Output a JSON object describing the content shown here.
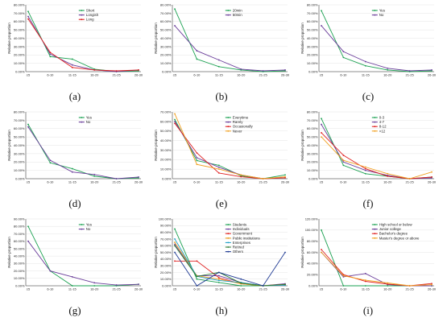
{
  "chart_data": [
    {
      "id": "a",
      "caption": "(a)",
      "type": "line",
      "ylabel": "Relative proportion",
      "xlabel": "",
      "ylim": [
        0,
        80
      ],
      "yticks": [
        0,
        10,
        20,
        30,
        40,
        50,
        60,
        70,
        80
      ],
      "categories": [
        "≤5",
        "6-10",
        "11-15",
        "16-20",
        "21-25",
        "26-30"
      ],
      "legend_position": "top-right",
      "series": [
        {
          "name": "Short",
          "color": "#1aa050",
          "values": [
            72,
            18,
            15,
            3,
            0,
            1
          ]
        },
        {
          "name": "Longish",
          "color": "#6a3d9a",
          "values": [
            66,
            21,
            8,
            2,
            0,
            2
          ]
        },
        {
          "name": "Long",
          "color": "#e02020",
          "values": [
            63,
            23,
            5,
            2,
            1,
            2
          ]
        }
      ]
    },
    {
      "id": "b",
      "caption": "(b)",
      "type": "line",
      "ylabel": "Relative proportion",
      "xlabel": "",
      "ylim": [
        0,
        80
      ],
      "yticks": [
        0,
        10,
        20,
        30,
        40,
        50,
        60,
        70,
        80
      ],
      "categories": [
        "≤5",
        "6-10",
        "11-15",
        "16-20",
        "21-25",
        "26-30"
      ],
      "legend_position": "top-right",
      "series": [
        {
          "name": "20min",
          "color": "#1aa050",
          "values": [
            75,
            15,
            6,
            2,
            0,
            1
          ]
        },
        {
          "name": "60min",
          "color": "#6a3d9a",
          "values": [
            55,
            25,
            14,
            3,
            1,
            2
          ]
        }
      ]
    },
    {
      "id": "c",
      "caption": "(c)",
      "type": "line",
      "ylabel": "Relative proportion",
      "xlabel": "",
      "ylim": [
        0,
        80
      ],
      "yticks": [
        0,
        10,
        20,
        30,
        40,
        50,
        60,
        70,
        80
      ],
      "categories": [
        "≤5",
        "6-10",
        "11-15",
        "16-20",
        "21-25",
        "26-30"
      ],
      "legend_position": "top-right",
      "series": [
        {
          "name": "Yes",
          "color": "#1aa050",
          "values": [
            73,
            17,
            7,
            2,
            0,
            1
          ]
        },
        {
          "name": "No",
          "color": "#6a3d9a",
          "values": [
            55,
            24,
            12,
            4,
            1,
            2
          ]
        }
      ]
    },
    {
      "id": "d",
      "caption": "(d)",
      "type": "line",
      "ylabel": "Relative proportion",
      "xlabel": "",
      "ylim": [
        0,
        80
      ],
      "yticks": [
        0,
        10,
        20,
        30,
        40,
        50,
        60,
        70,
        80
      ],
      "categories": [
        "≤5",
        "6-10",
        "11-15",
        "16-20",
        "21-25",
        "26-30"
      ],
      "legend_position": "top-right",
      "series": [
        {
          "name": "Yes",
          "color": "#1aa050",
          "values": [
            65,
            19,
            12,
            3,
            0,
            1
          ]
        },
        {
          "name": "No",
          "color": "#6a3d9a",
          "values": [
            62,
            22,
            8,
            5,
            0,
            2
          ]
        }
      ]
    },
    {
      "id": "e",
      "caption": "(e)",
      "type": "line",
      "ylabel": "Relative proportion",
      "xlabel": "",
      "ylim": [
        0,
        70
      ],
      "yticks": [
        0,
        10,
        20,
        30,
        40,
        50,
        60,
        70
      ],
      "categories": [
        "≤5",
        "6-10",
        "11-15",
        "16-20",
        "21-25",
        "26-30"
      ],
      "legend_position": "top-right",
      "series": [
        {
          "name": "Everytime",
          "color": "#1aa050",
          "values": [
            62,
            19,
            14,
            3,
            0,
            4
          ]
        },
        {
          "name": "Rarely",
          "color": "#6a3d9a",
          "values": [
            60,
            22,
            12,
            4,
            0,
            1
          ]
        },
        {
          "name": "Occasionally",
          "color": "#e02020",
          "values": [
            58,
            27,
            6,
            2,
            0,
            1
          ]
        },
        {
          "name": "Never",
          "color": "#f0a020",
          "values": [
            68,
            15,
            10,
            4,
            0,
            2
          ]
        }
      ]
    },
    {
      "id": "f",
      "caption": "(f)",
      "type": "line",
      "ylabel": "Relative proportion",
      "xlabel": "",
      "ylim": [
        0,
        80
      ],
      "yticks": [
        0,
        10,
        20,
        30,
        40,
        50,
        60,
        70,
        80
      ],
      "categories": [
        "≤5",
        "6-10",
        "11-15",
        "16-20",
        "21-25",
        "26-30"
      ],
      "legend_position": "top-right",
      "series": [
        {
          "name": "0-3",
          "color": "#1aa050",
          "values": [
            72,
            16,
            6,
            3,
            0,
            2
          ]
        },
        {
          "name": "4-7",
          "color": "#6a3d9a",
          "values": [
            65,
            20,
            10,
            4,
            0,
            1
          ]
        },
        {
          "name": "8-12",
          "color": "#e02020",
          "values": [
            55,
            28,
            12,
            3,
            0,
            2
          ]
        },
        {
          "name": ">12",
          "color": "#f0a020",
          "values": [
            50,
            22,
            14,
            6,
            0,
            8
          ]
        }
      ]
    },
    {
      "id": "g",
      "caption": "(g)",
      "type": "line",
      "ylabel": "Relative proportion",
      "xlabel": "",
      "ylim": [
        0,
        90
      ],
      "yticks": [
        0,
        10,
        20,
        30,
        40,
        50,
        60,
        70,
        80,
        90
      ],
      "categories": [
        "≤5",
        "6-10",
        "11-15",
        "16-20",
        "21-25",
        "26-30"
      ],
      "legend_position": "top-right",
      "series": [
        {
          "name": "Yes",
          "color": "#1aa050",
          "values": [
            80,
            20,
            0,
            0,
            0,
            2
          ]
        },
        {
          "name": "No",
          "color": "#6a3d9a",
          "values": [
            60,
            20,
            12,
            4,
            1,
            2
          ]
        }
      ]
    },
    {
      "id": "h",
      "caption": "(h)",
      "type": "line",
      "ylabel": "Relative proportion",
      "xlabel": "",
      "ylim": [
        0,
        100
      ],
      "yticks": [
        0,
        10,
        20,
        30,
        40,
        50,
        60,
        70,
        80,
        90,
        100
      ],
      "categories": [
        "≤5",
        "6-10",
        "11-15",
        "16-20",
        "21-25",
        "26-30"
      ],
      "legend_position": "top-right",
      "series": [
        {
          "name": "Students",
          "color": "#1aa050",
          "values": [
            85,
            10,
            5,
            0,
            0,
            2
          ]
        },
        {
          "name": "Individuals",
          "color": "#6a3d9a",
          "values": [
            62,
            15,
            15,
            5,
            0,
            3
          ]
        },
        {
          "name": "Government",
          "color": "#e02020",
          "values": [
            37,
            37,
            12,
            3,
            0,
            2
          ]
        },
        {
          "name": "Public institutions",
          "color": "#f0a020",
          "values": [
            65,
            15,
            10,
            3,
            0,
            2
          ]
        },
        {
          "name": "Enterprises",
          "color": "#20a0c8",
          "values": [
            70,
            14,
            8,
            5,
            0,
            1
          ]
        },
        {
          "name": "Retired",
          "color": "#2e7d32",
          "values": [
            60,
            14,
            20,
            4,
            0,
            2
          ]
        },
        {
          "name": "Others",
          "color": "#1f3a93",
          "values": [
            50,
            0,
            20,
            10,
            0,
            50
          ]
        }
      ]
    },
    {
      "id": "i",
      "caption": "(i)",
      "type": "line",
      "ylabel": "Relative proportion",
      "xlabel": "",
      "ylim": [
        0,
        120
      ],
      "yticks": [
        0,
        20,
        40,
        60,
        80,
        100,
        120
      ],
      "categories": [
        "≤5",
        "6-10",
        "11-15",
        "16-20",
        "21-25",
        "26-30"
      ],
      "legend_position": "top-right",
      "series": [
        {
          "name": "High school or below",
          "color": "#1aa050",
          "values": [
            100,
            0,
            0,
            0,
            0,
            0
          ]
        },
        {
          "name": "Junior college",
          "color": "#6a3d9a",
          "values": [
            60,
            16,
            22,
            2,
            0,
            0
          ]
        },
        {
          "name": "Bachelor's degree",
          "color": "#e02020",
          "values": [
            65,
            20,
            8,
            3,
            0,
            4
          ]
        },
        {
          "name": "Master's degree or above",
          "color": "#f0a020",
          "values": [
            60,
            18,
            10,
            5,
            0,
            2
          ]
        }
      ]
    }
  ]
}
